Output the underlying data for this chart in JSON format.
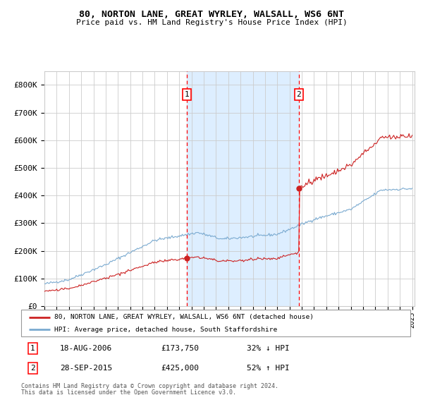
{
  "title_line1": "80, NORTON LANE, GREAT WYRLEY, WALSALL, WS6 6NT",
  "title_line2": "Price paid vs. HM Land Registry's House Price Index (HPI)",
  "ylim": [
    0,
    850000
  ],
  "yticks": [
    0,
    100000,
    200000,
    300000,
    400000,
    500000,
    600000,
    700000,
    800000
  ],
  "ytick_labels": [
    "£0",
    "£100K",
    "£200K",
    "£300K",
    "£400K",
    "£500K",
    "£600K",
    "£700K",
    "£800K"
  ],
  "x_start_year": 1995,
  "x_end_year": 2025,
  "sale1_year": 2006.625,
  "sale1_price": 173750,
  "sale1_label": "1",
  "sale1_date": "18-AUG-2006",
  "sale1_amount": "£173,750",
  "sale1_hpi": "32% ↓ HPI",
  "sale2_year": 2015.75,
  "sale2_price": 425000,
  "sale2_label": "2",
  "sale2_date": "28-SEP-2015",
  "sale2_amount": "£425,000",
  "sale2_hpi": "52% ↑ HPI",
  "hpi_color": "#7aaad0",
  "house_color": "#cc2222",
  "shading_color": "#ddeeff",
  "grid_color": "#cccccc",
  "bg_color": "#ffffff",
  "legend_line1": "80, NORTON LANE, GREAT WYRLEY, WALSALL, WS6 6NT (detached house)",
  "legend_line2": "HPI: Average price, detached house, South Staffordshire",
  "footer1": "Contains HM Land Registry data © Crown copyright and database right 2024.",
  "footer2": "This data is licensed under the Open Government Licence v3.0."
}
